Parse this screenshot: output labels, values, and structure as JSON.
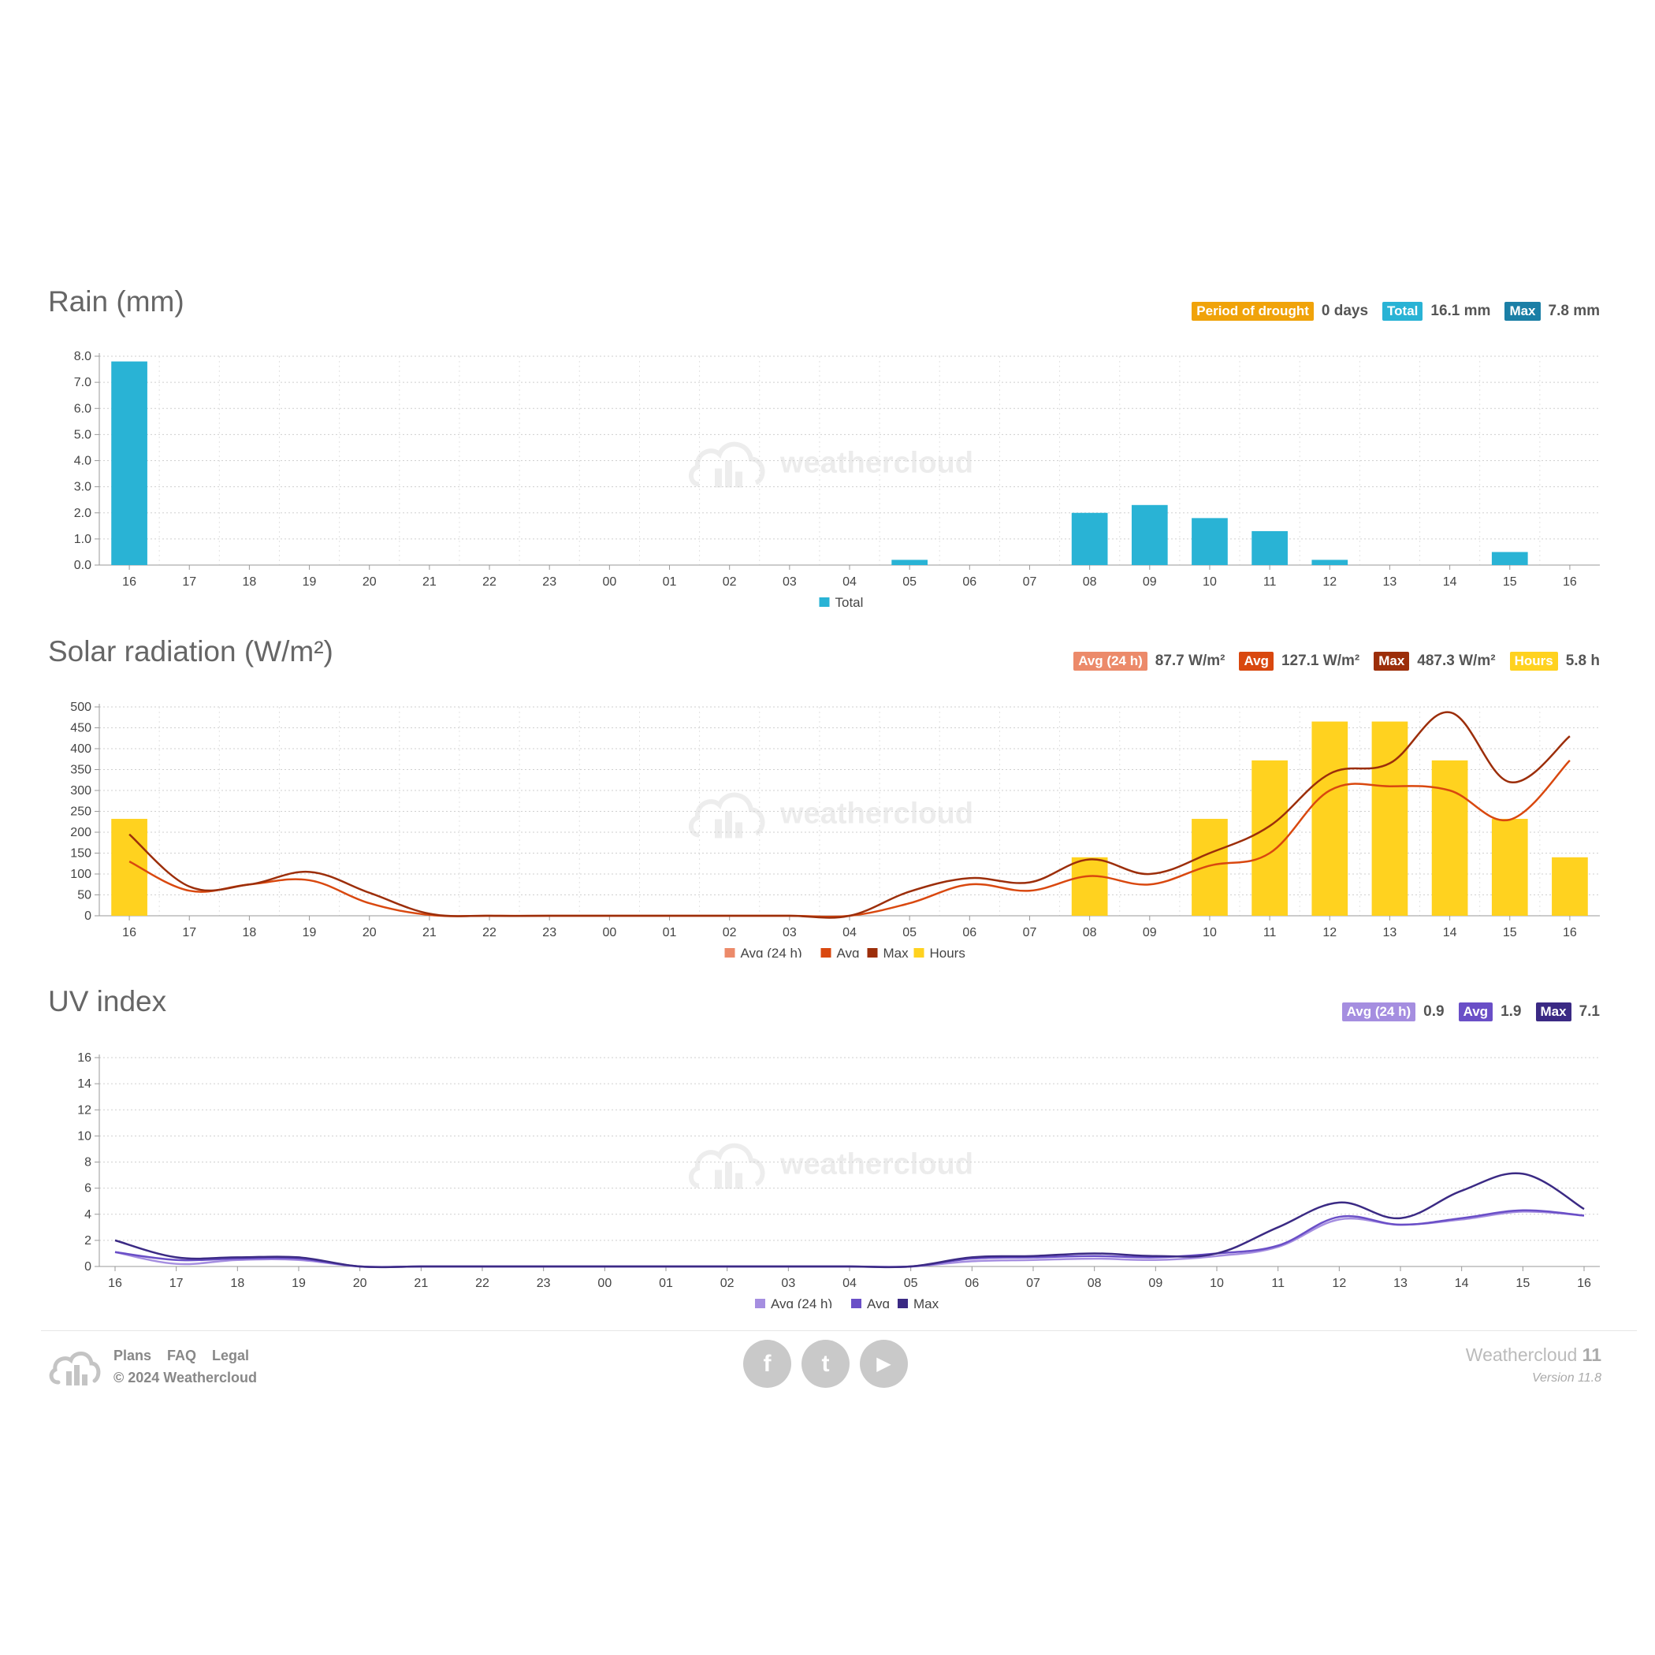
{
  "rain": {
    "title": "Rain (mm)",
    "badges": [
      {
        "label": "Period of drought",
        "value": "0 days",
        "color": "#f0a30a"
      },
      {
        "label": "Total",
        "value": "16.1 mm",
        "color": "#29b3d5"
      },
      {
        "label": "Max",
        "value": "7.8 mm",
        "color": "#1b7fa6"
      }
    ],
    "legend": [
      {
        "name": "Total",
        "color": "#29b3d5"
      }
    ]
  },
  "solar": {
    "title": "Solar radiation (W/m²)",
    "badges": [
      {
        "label": "Avg (24 h)",
        "value": "87.7 W/m²",
        "color": "#ec8a6a"
      },
      {
        "label": "Avg",
        "value": "127.1 W/m²",
        "color": "#d9480f"
      },
      {
        "label": "Max",
        "value": "487.3 W/m²",
        "color": "#9c2e0a"
      },
      {
        "label": "Hours",
        "value": "5.8 h",
        "color": "#ffd21f"
      }
    ],
    "legend": [
      {
        "name": "Avg (24 h)",
        "color": "#ec8a6a"
      },
      {
        "name": "Avg",
        "color": "#d9480f"
      },
      {
        "name": "Max",
        "color": "#9c2e0a"
      },
      {
        "name": "Hours",
        "color": "#ffd21f"
      }
    ]
  },
  "uv": {
    "title": "UV index",
    "badges": [
      {
        "label": "Avg (24 h)",
        "value": "0.9",
        "color": "#a58ee0"
      },
      {
        "label": "Avg",
        "value": "1.9",
        "color": "#6a4fc7"
      },
      {
        "label": "Max",
        "value": "7.1",
        "color": "#3b2a84"
      }
    ],
    "legend": [
      {
        "name": "Avg (24 h)",
        "color": "#a58ee0"
      },
      {
        "name": "Avg",
        "color": "#6a4fc7"
      },
      {
        "name": "Max",
        "color": "#3b2a84"
      }
    ]
  },
  "watermark": {
    "light": "weather",
    "bold": "cloud"
  },
  "footer": {
    "links": [
      "Plans",
      "FAQ",
      "Legal"
    ],
    "copyright": "© 2024 Weathercloud",
    "brand_name": "Weathercloud",
    "brand_version_num": "11",
    "version": "Version 11.8",
    "social": [
      {
        "name": "facebook",
        "glyph": "f"
      },
      {
        "name": "twitter",
        "glyph": "t"
      },
      {
        "name": "youtube",
        "glyph": "▶"
      }
    ]
  },
  "chart_data": [
    {
      "id": "rain",
      "type": "bar",
      "categories": [
        "16",
        "17",
        "18",
        "19",
        "20",
        "21",
        "22",
        "23",
        "00",
        "01",
        "02",
        "03",
        "04",
        "05",
        "06",
        "07",
        "08",
        "09",
        "10",
        "11",
        "12",
        "13",
        "14",
        "15",
        "16"
      ],
      "ylim": [
        0,
        8
      ],
      "yticks": [
        "0.0",
        "1.0",
        "2.0",
        "3.0",
        "4.0",
        "5.0",
        "6.0",
        "7.0",
        "8.0"
      ],
      "series": [
        {
          "name": "Total",
          "type": "bar",
          "color": "#29b3d5",
          "values": [
            7.8,
            0,
            0,
            0,
            0,
            0,
            0,
            0,
            0,
            0,
            0,
            0,
            0,
            0.2,
            0,
            0,
            2.0,
            2.3,
            1.8,
            1.3,
            0.2,
            0,
            0,
            0.5,
            0
          ]
        }
      ]
    },
    {
      "id": "solar",
      "type": "bar",
      "categories": [
        "16",
        "17",
        "18",
        "19",
        "20",
        "21",
        "22",
        "23",
        "00",
        "01",
        "02",
        "03",
        "04",
        "05",
        "06",
        "07",
        "08",
        "09",
        "10",
        "11",
        "12",
        "13",
        "14",
        "15",
        "16"
      ],
      "ylim": [
        0,
        500
      ],
      "yticks": [
        "0",
        "50",
        "100",
        "150",
        "200",
        "250",
        "300",
        "350",
        "400",
        "450",
        "500"
      ],
      "series": [
        {
          "name": "Hours",
          "type": "bar",
          "color": "#ffd21f",
          "values": [
            232,
            0,
            0,
            0,
            0,
            0,
            0,
            0,
            0,
            0,
            0,
            0,
            0,
            0,
            0,
            0,
            140,
            0,
            232,
            372,
            465,
            465,
            372,
            232,
            140
          ]
        },
        {
          "name": "Avg",
          "type": "line",
          "color": "#d9480f",
          "values": [
            130,
            60,
            75,
            85,
            30,
            2,
            0,
            0,
            0,
            0,
            0,
            0,
            0,
            30,
            75,
            60,
            95,
            75,
            120,
            150,
            300,
            310,
            300,
            230,
            372
          ]
        },
        {
          "name": "Max",
          "type": "line",
          "color": "#9c2e0a",
          "values": [
            195,
            70,
            75,
            105,
            55,
            5,
            0,
            0,
            0,
            0,
            0,
            0,
            0,
            58,
            90,
            80,
            135,
            100,
            150,
            215,
            340,
            365,
            487,
            320,
            430
          ]
        }
      ]
    },
    {
      "id": "uv",
      "type": "line",
      "categories": [
        "16",
        "17",
        "18",
        "19",
        "20",
        "21",
        "22",
        "23",
        "00",
        "01",
        "02",
        "03",
        "04",
        "05",
        "06",
        "07",
        "08",
        "09",
        "10",
        "11",
        "12",
        "13",
        "14",
        "15",
        "16"
      ],
      "ylim": [
        0,
        16
      ],
      "yticks": [
        "0",
        "2",
        "4",
        "6",
        "8",
        "10",
        "12",
        "14",
        "16"
      ],
      "series": [
        {
          "name": "Avg (24 h)",
          "type": "line",
          "color": "#a58ee0",
          "values": [
            1.1,
            0.2,
            0.5,
            0.5,
            0,
            0,
            0,
            0,
            0,
            0,
            0,
            0,
            0,
            0,
            0.4,
            0.5,
            0.6,
            0.5,
            0.8,
            1.5,
            3.6,
            3.2,
            3.6,
            4.2,
            3.9
          ]
        },
        {
          "name": "Avg",
          "type": "line",
          "color": "#6a4fc7",
          "values": [
            1.1,
            0.5,
            0.6,
            0.6,
            0,
            0,
            0,
            0,
            0,
            0,
            0,
            0,
            0,
            0,
            0.6,
            0.7,
            0.8,
            0.7,
            1.0,
            1.6,
            3.8,
            3.2,
            3.7,
            4.3,
            3.9
          ]
        },
        {
          "name": "Max",
          "type": "line",
          "color": "#3b2a84",
          "values": [
            2.0,
            0.7,
            0.7,
            0.7,
            0,
            0,
            0,
            0,
            0,
            0,
            0,
            0,
            0,
            0,
            0.7,
            0.8,
            1.0,
            0.8,
            1.0,
            3.0,
            4.9,
            3.7,
            5.8,
            7.1,
            4.4
          ]
        }
      ]
    }
  ]
}
